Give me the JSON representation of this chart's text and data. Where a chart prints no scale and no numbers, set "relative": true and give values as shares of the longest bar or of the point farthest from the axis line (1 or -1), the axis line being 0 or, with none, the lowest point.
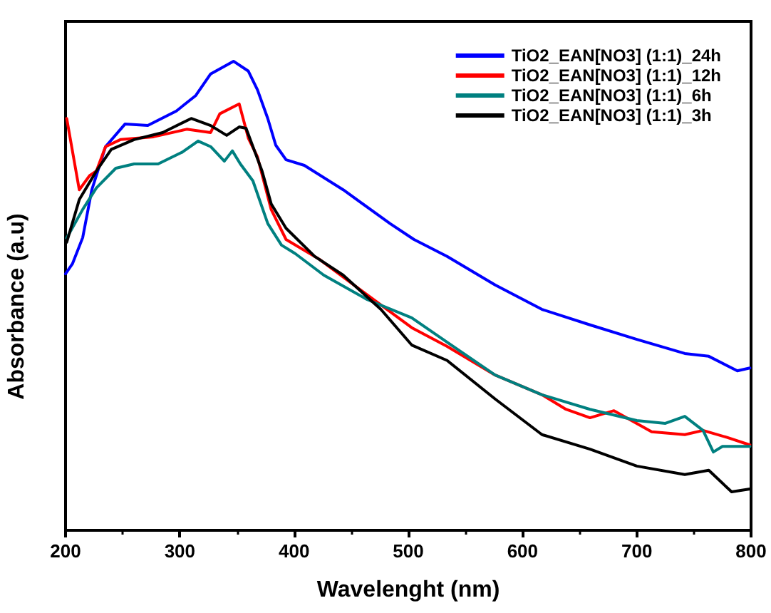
{
  "chart_data": {
    "type": "line",
    "relative": true,
    "xlabel": "Wavelenght (nm)",
    "ylabel": "Absorbance (a.u)",
    "xlim": [
      200,
      800
    ],
    "xticks": [
      200,
      300,
      400,
      500,
      600,
      700,
      800
    ],
    "grid": false,
    "legend": "top right",
    "marker": "none",
    "line_style": "solid",
    "series": [
      {
        "name": "TiO2_EAN[NO3] (1:1)_24h",
        "color": "#0000ff",
        "x": [
          200,
          206,
          215,
          223,
          235,
          252,
          272,
          297,
          314,
          327,
          347,
          360,
          368,
          377,
          384,
          393,
          409,
          443,
          484,
          505,
          534,
          576,
          617,
          659,
          700,
          742,
          763,
          788,
          799
        ],
        "values": [
          0.547,
          0.568,
          0.624,
          0.726,
          0.818,
          0.866,
          0.863,
          0.894,
          0.927,
          0.973,
          1,
          0.979,
          0.939,
          0.878,
          0.821,
          0.79,
          0.778,
          0.726,
          0.654,
          0.62,
          0.584,
          0.523,
          0.471,
          0.438,
          0.407,
          0.377,
          0.371,
          0.34,
          0.346
        ]
      },
      {
        "name": "TiO2_EAN[NO3] (1:1)_12h",
        "color": "#ff0000",
        "x": [
          201,
          212,
          221,
          227,
          235,
          248,
          277,
          306,
          327,
          335,
          352,
          360,
          368,
          380,
          393,
          422,
          464,
          503,
          534,
          576,
          617,
          638,
          659,
          680,
          713,
          742,
          758,
          779,
          799
        ],
        "values": [
          0.878,
          0.726,
          0.756,
          0.766,
          0.818,
          0.833,
          0.839,
          0.855,
          0.848,
          0.888,
          0.909,
          0.836,
          0.796,
          0.684,
          0.62,
          0.578,
          0.502,
          0.432,
          0.392,
          0.331,
          0.289,
          0.258,
          0.24,
          0.255,
          0.21,
          0.204,
          0.213,
          0.198,
          0.182
        ]
      },
      {
        "name": "TiO2_EAN[NO3] (1:1)_6h",
        "color": "#008080",
        "x": [
          201,
          215,
          227,
          244,
          260,
          281,
          302,
          316,
          327,
          339,
          346,
          353,
          364,
          377,
          389,
          401,
          426,
          464,
          503,
          534,
          576,
          617,
          659,
          700,
          725,
          742,
          758,
          767,
          775,
          799
        ],
        "values": [
          0.623,
          0.684,
          0.73,
          0.772,
          0.781,
          0.781,
          0.806,
          0.83,
          0.818,
          0.787,
          0.809,
          0.781,
          0.745,
          0.654,
          0.608,
          0.59,
          0.544,
          0.492,
          0.453,
          0.401,
          0.331,
          0.289,
          0.258,
          0.234,
          0.228,
          0.243,
          0.213,
          0.167,
          0.179,
          0.179
        ]
      },
      {
        "name": "TiO2_EAN[NO3] (1:1)_3h",
        "color": "#000000",
        "x": [
          201,
          212,
          227,
          240,
          260,
          285,
          310,
          327,
          341,
          352,
          358,
          372,
          380,
          393,
          418,
          443,
          476,
          503,
          534,
          576,
          617,
          659,
          700,
          742,
          763,
          783,
          799
        ],
        "values": [
          0.614,
          0.705,
          0.766,
          0.812,
          0.833,
          0.848,
          0.878,
          0.863,
          0.842,
          0.86,
          0.857,
          0.766,
          0.696,
          0.644,
          0.584,
          0.544,
          0.471,
          0.395,
          0.362,
          0.28,
          0.204,
          0.173,
          0.137,
          0.119,
          0.128,
          0.082,
          0.088
        ]
      }
    ]
  }
}
